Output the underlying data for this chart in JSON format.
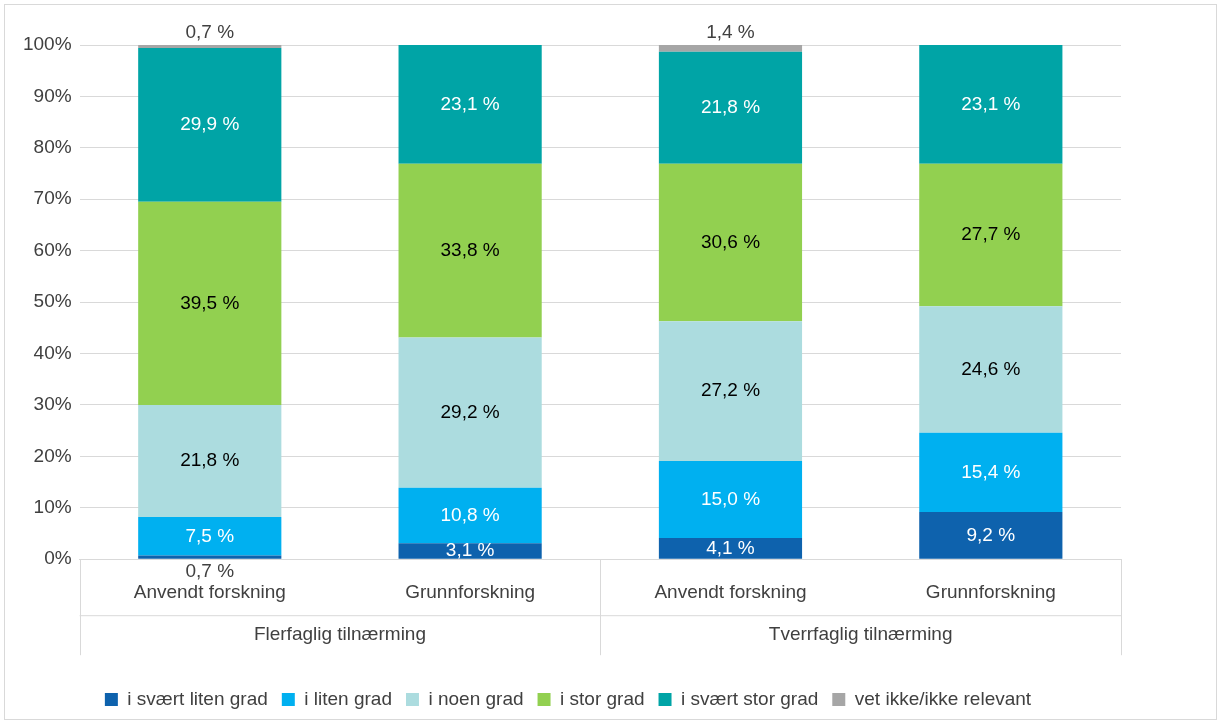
{
  "chart_data": {
    "type": "bar",
    "stacked": true,
    "categories": [
      "Anvendt forskning",
      "Grunnforskning",
      "Anvendt forskning",
      "Grunnforskning"
    ],
    "annotations": [
      "Flerfaglig tilnærming",
      "Tverrfaglig tilnærming"
    ],
    "series": [
      {
        "name": "i svært liten grad",
        "color": "#0e62ad",
        "values": [
          0.7,
          3.1,
          4.1,
          9.2
        ],
        "value_labels": [
          "0,7 %",
          "3,1 %",
          "4,1 %",
          "9,2 %"
        ]
      },
      {
        "name": "i liten grad",
        "color": "#00b0f0",
        "values": [
          7.5,
          10.8,
          15.0,
          15.4
        ],
        "value_labels": [
          "7,5 %",
          "10,8 %",
          "15,0 %",
          "15,4 %"
        ]
      },
      {
        "name": "i noen grad",
        "color": "#acdcdf",
        "values": [
          21.8,
          29.2,
          27.2,
          24.6
        ],
        "value_labels": [
          "21,8 %",
          "29,2 %",
          "27,2 %",
          "24,6 %"
        ]
      },
      {
        "name": "i stor grad",
        "color": "#92d050",
        "values": [
          39.5,
          33.8,
          30.6,
          27.7
        ],
        "value_labels": [
          "39,5 %",
          "33,8 %",
          "30,6 %",
          "27,7 %"
        ]
      },
      {
        "name": "i svært stor grad",
        "color": "#00a4a6",
        "values": [
          29.9,
          23.1,
          21.8,
          23.1
        ],
        "value_labels": [
          "29,9 %",
          "23,1 %",
          "21,8 %",
          "23,1 %"
        ]
      },
      {
        "name": "vet ikke/ikke relevant",
        "color": "#a6a6a6",
        "values": [
          0.7,
          null,
          1.4,
          null
        ],
        "value_labels": [
          "0,7 %",
          null,
          "1,4 %",
          null
        ]
      }
    ],
    "ylim": [
      0,
      100
    ],
    "yticks": [
      {
        "value": 0,
        "label": "0%"
      },
      {
        "value": 10,
        "label": "10%"
      },
      {
        "value": 20,
        "label": "20%"
      },
      {
        "value": 30,
        "label": "30%"
      },
      {
        "value": 40,
        "label": "40%"
      },
      {
        "value": 50,
        "label": "50%"
      },
      {
        "value": 60,
        "label": "60%"
      },
      {
        "value": 70,
        "label": "70%"
      },
      {
        "value": 80,
        "label": "80%"
      },
      {
        "value": 90,
        "label": "90%"
      },
      {
        "value": 100,
        "label": "100%"
      }
    ],
    "grid": "y",
    "legend": "bottom"
  }
}
